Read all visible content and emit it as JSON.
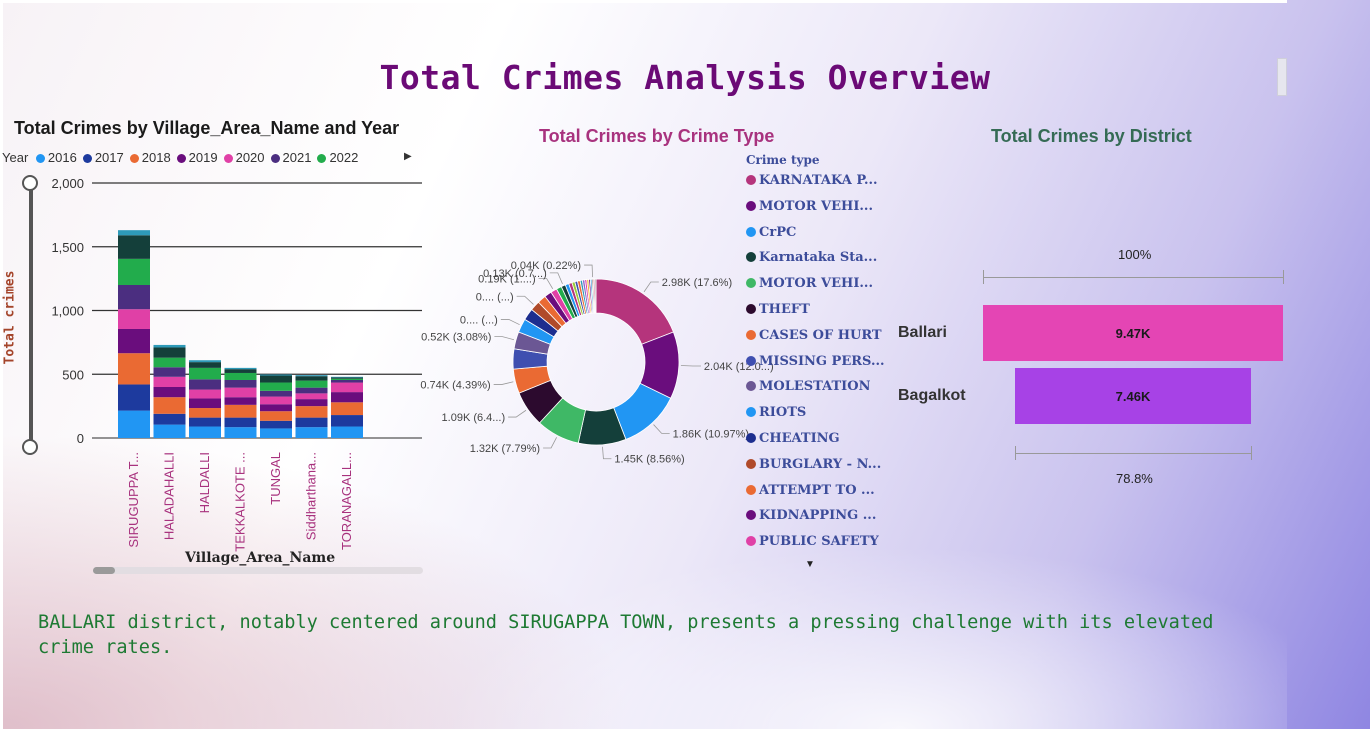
{
  "page": {
    "title": "Total Crimes Analysis Overview",
    "summary": "BALLARI district, notably centered around SIRUGAPPA TOWN, presents a pressing challenge with its elevated crime rates."
  },
  "colors": {
    "title": "#6b0a76",
    "summary": "#1e7a33"
  },
  "chart_data": [
    {
      "type": "bar",
      "stacked": true,
      "title": "Total Crimes by Village_Area_Name and Year",
      "xlabel": "Village_Area_Name",
      "ylabel": "Total crimes",
      "ylim": [
        0,
        2000
      ],
      "yticks": [
        "0",
        "500",
        "1,000",
        "1,500",
        "2,000"
      ],
      "grid": true,
      "legend_title": "Year",
      "legend_placement": "top",
      "categories": [
        "SIRUGUPPA T...",
        "HALADAHALLI",
        "HALDALLI",
        "TEKKALKOTE ...",
        "TUNGAL",
        "Siddharthana...",
        "TORANAGALL..."
      ],
      "series": [
        {
          "name": "2016",
          "color": "#2196f3",
          "values": [
            215,
            105,
            90,
            85,
            75,
            85,
            90
          ]
        },
        {
          "name": "2017",
          "color": "#1d3a9e",
          "values": [
            205,
            85,
            70,
            75,
            60,
            75,
            90
          ]
        },
        {
          "name": "2018",
          "color": "#ea6a33",
          "values": [
            245,
            130,
            75,
            100,
            75,
            90,
            100
          ]
        },
        {
          "name": "2019",
          "color": "#6a0d7d",
          "values": [
            190,
            80,
            75,
            60,
            55,
            55,
            80
          ]
        },
        {
          "name": "2020",
          "color": "#e040a6",
          "values": [
            155,
            80,
            70,
            75,
            60,
            45,
            75
          ]
        },
        {
          "name": "2021",
          "color": "#4b2e80",
          "values": [
            190,
            75,
            80,
            60,
            45,
            45,
            20
          ]
        },
        {
          "name": "2022",
          "color": "#22ac4c",
          "values": [
            205,
            75,
            90,
            55,
            65,
            55,
            10
          ]
        },
        {
          "name": "",
          "color": "#143f3a",
          "values": [
            185,
            80,
            45,
            30,
            55,
            35,
            10
          ]
        },
        {
          "name": "",
          "color": "#2e9ab8",
          "values": [
            40,
            20,
            15,
            10,
            8,
            8,
            5
          ]
        }
      ]
    },
    {
      "type": "pie",
      "donut": true,
      "title": "Total Crimes by Crime Type",
      "legend_title": "Crime type",
      "legend_placement": "right",
      "legend": [
        {
          "label": "KARNATAKA P...",
          "color": "#b5347c"
        },
        {
          "label": "MOTOR VEHI...",
          "color": "#6a0d7d"
        },
        {
          "label": "CrPC",
          "color": "#2196f3"
        },
        {
          "label": "Karnataka Sta...",
          "color": "#143f3a"
        },
        {
          "label": "MOTOR VEHI...",
          "color": "#3fb866"
        },
        {
          "label": "THEFT",
          "color": "#2c0a2e"
        },
        {
          "label": "CASES OF HURT",
          "color": "#ea6a33"
        },
        {
          "label": "MISSING PERS...",
          "color": "#3f4fb0"
        },
        {
          "label": "MOLESTATION",
          "color": "#6b5794"
        },
        {
          "label": "RIOTS",
          "color": "#2196f3"
        },
        {
          "label": "CHEATING",
          "color": "#1d2e8f"
        },
        {
          "label": "BURGLARY - N...",
          "color": "#b04a2a"
        },
        {
          "label": "ATTEMPT TO ...",
          "color": "#ea6a33"
        },
        {
          "label": "KIDNAPPING ...",
          "color": "#6a0d7d"
        },
        {
          "label": "PUBLIC SAFETY",
          "color": "#e040a6"
        }
      ],
      "slices": [
        {
          "value": 2.98,
          "label": "2.98K (17.6%)",
          "color": "#b5347c"
        },
        {
          "value": 2.04,
          "label": "2.04K (12.0...)",
          "color": "#6a0d7d"
        },
        {
          "value": 1.86,
          "label": "1.86K (10.97%)",
          "color": "#2196f3"
        },
        {
          "value": 1.45,
          "label": "1.45K (8.56%)",
          "color": "#143f3a"
        },
        {
          "value": 1.32,
          "label": "1.32K (7.79%)",
          "color": "#3fb866"
        },
        {
          "value": 1.09,
          "label": "1.09K (6.4...)",
          "color": "#2c0a2e"
        },
        {
          "value": 0.74,
          "label": "0.74K (4.39%)",
          "color": "#ea6a33"
        },
        {
          "value": 0.61,
          "label": "",
          "color": "#3f4fb0"
        },
        {
          "value": 0.52,
          "label": "0.52K (3.08%)",
          "color": "#6b5794"
        },
        {
          "value": 0.42,
          "label": "0.... (...)",
          "color": "#2196f3"
        },
        {
          "value": 0.36,
          "label": "",
          "color": "#1d2e8f"
        },
        {
          "value": 0.3,
          "label": "0.... (...)",
          "color": "#b04a2a"
        },
        {
          "value": 0.26,
          "label": "",
          "color": "#ea6a33"
        },
        {
          "value": 0.22,
          "label": "",
          "color": "#6a0d7d"
        },
        {
          "value": 0.19,
          "label": "0.19K (1....)",
          "color": "#e040a6"
        },
        {
          "value": 0.16,
          "label": "",
          "color": "#22ac4c"
        },
        {
          "value": 0.13,
          "label": "0.13K (0.7...)",
          "color": "#143f3a"
        },
        {
          "value": 0.11,
          "label": "",
          "color": "#2196f3"
        },
        {
          "value": 0.1,
          "label": "",
          "color": "#b5347c"
        },
        {
          "value": 0.09,
          "label": "",
          "color": "#9ccb3a"
        },
        {
          "value": 0.08,
          "label": "",
          "color": "#3f4fb0"
        },
        {
          "value": 0.08,
          "label": "",
          "color": "#ea6a33"
        },
        {
          "value": 0.07,
          "label": "",
          "color": "#2e9ab8"
        },
        {
          "value": 0.07,
          "label": "",
          "color": "#8a6ad0"
        },
        {
          "value": 0.06,
          "label": "",
          "color": "#e040a6"
        },
        {
          "value": 0.06,
          "label": "",
          "color": "#f2b53a"
        },
        {
          "value": 0.05,
          "label": "",
          "color": "#6a0d7d"
        },
        {
          "value": 0.05,
          "label": "",
          "color": "#4aa3df"
        },
        {
          "value": 0.04,
          "label": "0.04K (0.22%)",
          "color": "#8c6a5a"
        },
        {
          "value": 0.04,
          "label": "",
          "color": "#c03060"
        },
        {
          "value": 0.04,
          "label": "",
          "color": "#9b9b9b"
        }
      ]
    },
    {
      "type": "funnel",
      "title": "Total Crimes by District",
      "categories": [
        "Ballari",
        "Bagalkot"
      ],
      "values": [
        9.47,
        7.46
      ],
      "value_labels": [
        "9.47K",
        "7.46K"
      ],
      "colors": [
        "#e445b4",
        "#a742e6"
      ],
      "top_percent": "100%",
      "bottom_percent": "78.8%"
    }
  ]
}
